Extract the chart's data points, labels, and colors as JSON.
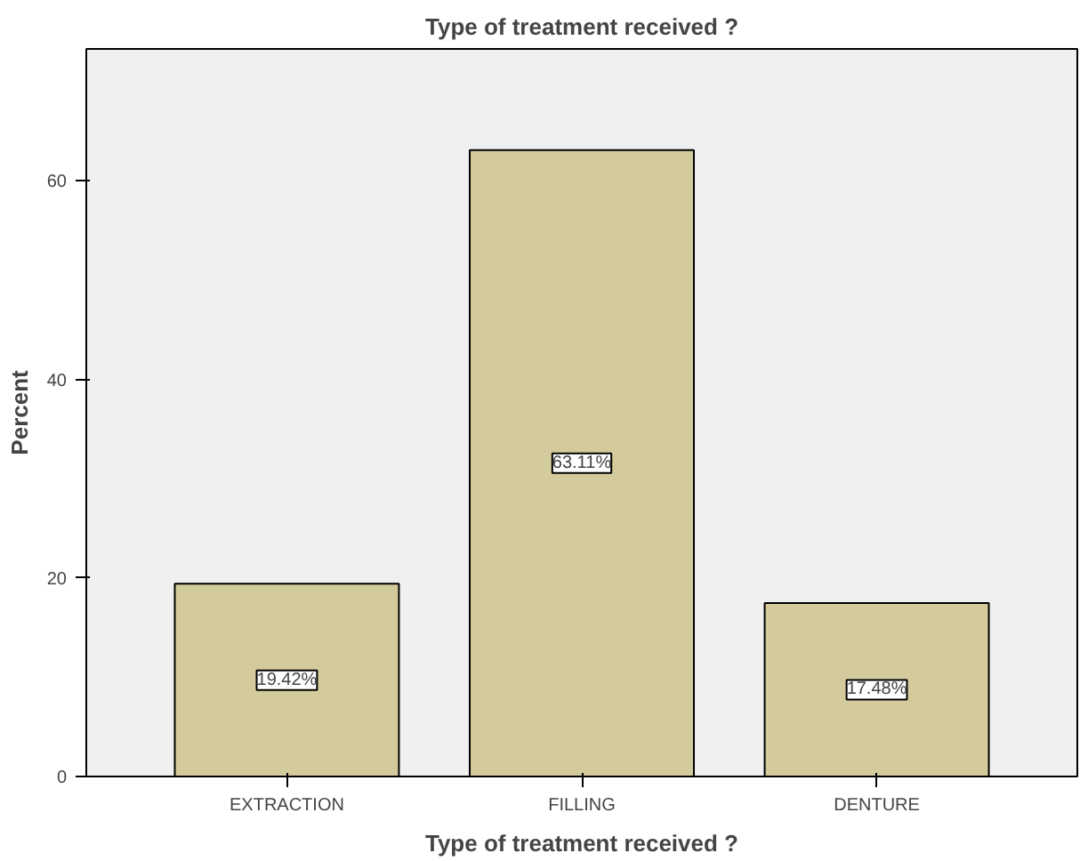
{
  "chart_data": {
    "type": "bar",
    "title": "Type of treatment received ?",
    "xlabel": "Type of treatment received ?",
    "ylabel": "Percent",
    "categories": [
      "EXTRACTION",
      "FILLING",
      "DENTURE"
    ],
    "values": [
      19.42,
      63.11,
      17.48
    ],
    "value_labels": [
      "19.42%",
      "63.11%",
      "17.48%"
    ],
    "color": "#d3cb9b",
    "ylim": [
      0,
      73.3
    ],
    "yticks": [
      0,
      20,
      40,
      60
    ],
    "grid": false
  }
}
